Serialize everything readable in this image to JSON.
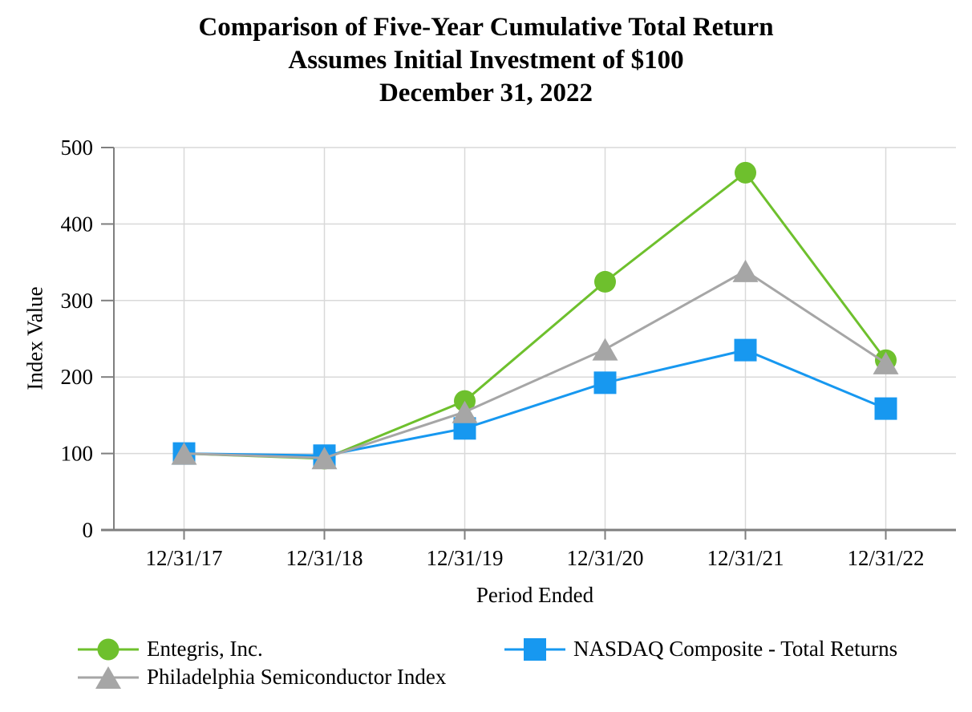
{
  "title": {
    "line1": "Comparison of Five-Year Cumulative Total Return",
    "line2": "Assumes Initial Investment of $100",
    "line3": "December 31, 2022"
  },
  "chart_data": {
    "type": "line",
    "x": [
      "12/31/17",
      "12/31/18",
      "12/31/19",
      "12/31/20",
      "12/31/21",
      "12/31/22"
    ],
    "series": [
      {
        "name": "Entegris, Inc.",
        "marker": "circle",
        "color": "#6EC02D",
        "values": [
          100,
          93.3,
          168.6,
          324.5,
          467.1,
          222.0
        ]
      },
      {
        "name": "NASDAQ Composite - Total Returns",
        "marker": "square",
        "color": "#1798F0",
        "values": [
          100,
          97.2,
          132.8,
          192.5,
          235.2,
          158.7
        ]
      },
      {
        "name": "Philadelphia Semiconductor Index",
        "marker": "triangle",
        "color": "#A6A6A6",
        "values": [
          100,
          94.1,
          154.3,
          236.3,
          338.7,
          218.1
        ]
      }
    ],
    "xlabel": "Period Ended",
    "ylabel": "Index Value",
    "ylim": [
      0,
      500
    ],
    "y_ticks": [
      0,
      100,
      200,
      300,
      400,
      500
    ],
    "grid": true,
    "legend_position": "bottom"
  },
  "colors": {
    "grid": "#D9D9D9",
    "axis": "#7F7F7F",
    "text": "#000000"
  }
}
